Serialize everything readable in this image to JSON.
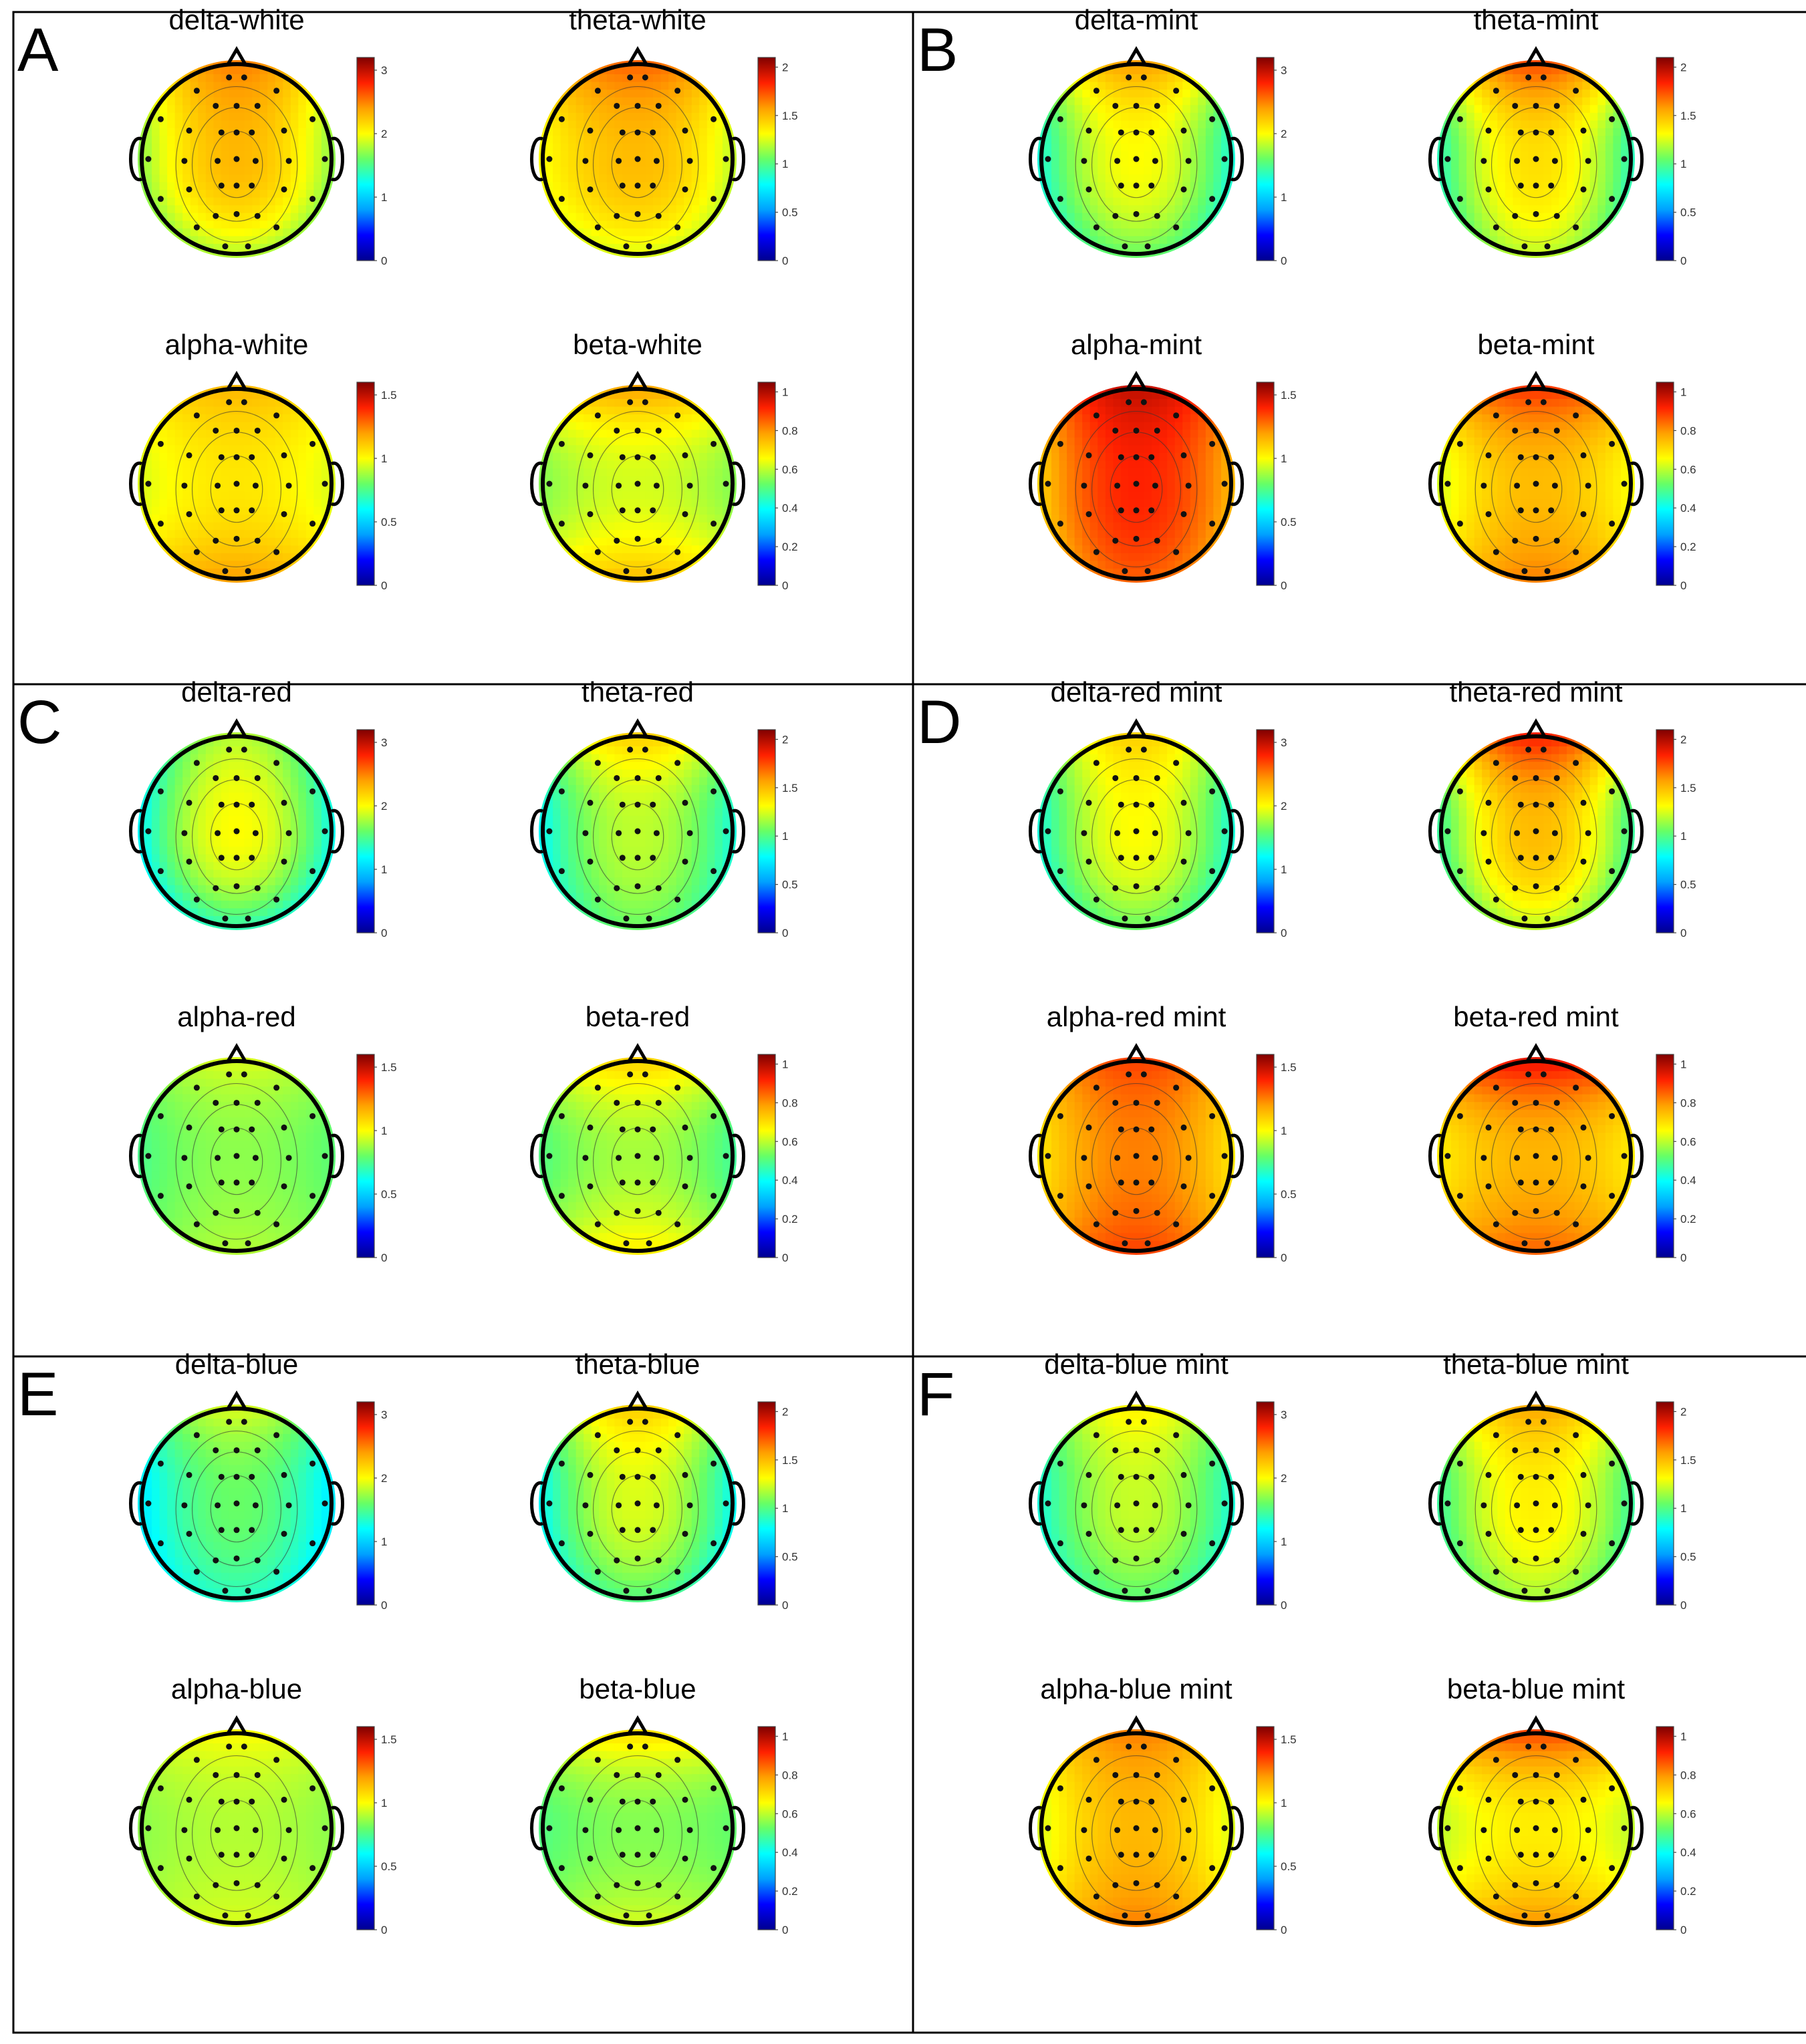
{
  "colors": {
    "frame": "#000000",
    "electrode": "#111111",
    "colormap": [
      "#00008f",
      "#0000ff",
      "#00a0ff",
      "#00ffff",
      "#66ff66",
      "#ffff00",
      "#ffa000",
      "#ff2000",
      "#800000"
    ]
  },
  "chart_data": {
    "type": "heatmap",
    "description_units": "colorbar scale (topographic EEG maps)",
    "groups": [
      {
        "letter": "A",
        "maps": [
          {
            "title": "delta-white",
            "ticks": [
              "0",
              "1",
              "2",
              "3"
            ],
            "range": [
              0,
              3.2
            ],
            "front": 2.5,
            "left": 1.7,
            "right": 1.7,
            "back": 1.8,
            "center": 2.3
          },
          {
            "title": "theta-white",
            "ticks": [
              "0",
              "0.5",
              "1",
              "1.5",
              "2"
            ],
            "range": [
              0,
              2.1
            ],
            "front": 1.7,
            "left": 1.3,
            "right": 1.2,
            "back": 1.25,
            "center": 1.5
          },
          {
            "title": "alpha-white",
            "ticks": [
              "0",
              "0.5",
              "1",
              "1.5"
            ],
            "range": [
              0,
              1.6
            ],
            "front": 1.15,
            "left": 0.95,
            "right": 0.95,
            "back": 1.2,
            "center": 1.05
          },
          {
            "title": "beta-white",
            "ticks": [
              "0",
              "0.2",
              "0.4",
              "0.6",
              "0.8",
              "1"
            ],
            "range": [
              0,
              1.05
            ],
            "front": 0.78,
            "left": 0.55,
            "right": 0.55,
            "back": 0.75,
            "center": 0.62
          }
        ]
      },
      {
        "letter": "B",
        "maps": [
          {
            "title": "delta-mint",
            "ticks": [
              "0",
              "1",
              "2",
              "3"
            ],
            "range": [
              0,
              3.2
            ],
            "front": 2.4,
            "left": 1.3,
            "right": 1.3,
            "back": 1.6,
            "center": 2.0
          },
          {
            "title": "theta-mint",
            "ticks": [
              "0",
              "0.5",
              "1",
              "1.5",
              "2"
            ],
            "range": [
              0,
              2.1
            ],
            "front": 1.75,
            "left": 0.9,
            "right": 0.9,
            "back": 1.2,
            "center": 1.4
          },
          {
            "title": "alpha-mint",
            "ticks": [
              "0",
              "0.5",
              "1",
              "1.5"
            ],
            "range": [
              0,
              1.6
            ],
            "front": 1.5,
            "left": 1.1,
            "right": 1.15,
            "back": 1.3,
            "center": 1.4
          },
          {
            "title": "beta-mint",
            "ticks": [
              "0",
              "0.2",
              "0.4",
              "0.6",
              "0.8",
              "1"
            ],
            "range": [
              0,
              1.05
            ],
            "front": 0.9,
            "left": 0.62,
            "right": 0.65,
            "back": 0.82,
            "center": 0.75
          }
        ]
      },
      {
        "letter": "C",
        "maps": [
          {
            "title": "delta-red",
            "ticks": [
              "0",
              "1",
              "2",
              "3"
            ],
            "range": [
              0,
              3.2
            ],
            "front": 1.8,
            "left": 1.2,
            "right": 1.25,
            "back": 1.4,
            "center": 2.0
          },
          {
            "title": "theta-red",
            "ticks": [
              "0",
              "0.5",
              "1",
              "1.5",
              "2"
            ],
            "range": [
              0,
              2.1
            ],
            "front": 1.45,
            "left": 0.8,
            "right": 0.85,
            "back": 1.05,
            "center": 1.2
          },
          {
            "title": "alpha-red",
            "ticks": [
              "0",
              "0.5",
              "1",
              "1.5"
            ],
            "range": [
              0,
              1.6
            ],
            "front": 0.95,
            "left": 0.75,
            "right": 0.78,
            "back": 0.9,
            "center": 0.85
          },
          {
            "title": "beta-red",
            "ticks": [
              "0",
              "0.2",
              "0.4",
              "0.6",
              "0.8",
              "1"
            ],
            "range": [
              0,
              1.05
            ],
            "front": 0.72,
            "left": 0.5,
            "right": 0.48,
            "back": 0.68,
            "center": 0.58
          }
        ]
      },
      {
        "letter": "D",
        "maps": [
          {
            "title": "delta-red mint",
            "ticks": [
              "0",
              "1",
              "2",
              "3"
            ],
            "range": [
              0,
              3.2
            ],
            "front": 2.2,
            "left": 1.3,
            "right": 1.3,
            "back": 1.6,
            "center": 2.0
          },
          {
            "title": "theta-red mint",
            "ticks": [
              "0",
              "0.5",
              "1",
              "1.5",
              "2"
            ],
            "range": [
              0,
              2.1
            ],
            "front": 1.85,
            "left": 0.95,
            "right": 0.95,
            "back": 1.2,
            "center": 1.5
          },
          {
            "title": "alpha-red mint",
            "ticks": [
              "0",
              "0.5",
              "1",
              "1.5"
            ],
            "range": [
              0,
              1.6
            ],
            "front": 1.35,
            "left": 1.05,
            "right": 1.05,
            "back": 1.35,
            "center": 1.25
          },
          {
            "title": "beta-red mint",
            "ticks": [
              "0",
              "0.2",
              "0.4",
              "0.6",
              "0.8",
              "1"
            ],
            "range": [
              0,
              1.05
            ],
            "front": 0.95,
            "left": 0.68,
            "right": 0.68,
            "back": 0.85,
            "center": 0.76
          }
        ]
      },
      {
        "letter": "E",
        "maps": [
          {
            "title": "delta-blue",
            "ticks": [
              "0",
              "1",
              "2",
              "3"
            ],
            "range": [
              0,
              3.2
            ],
            "front": 1.9,
            "left": 1.1,
            "right": 1.1,
            "back": 1.35,
            "center": 1.6
          },
          {
            "title": "theta-blue",
            "ticks": [
              "0",
              "0.5",
              "1",
              "1.5",
              "2"
            ],
            "range": [
              0,
              2.1
            ],
            "front": 1.45,
            "left": 0.8,
            "right": 0.8,
            "back": 1.0,
            "center": 1.25
          },
          {
            "title": "alpha-blue",
            "ticks": [
              "0",
              "0.5",
              "1",
              "1.5"
            ],
            "range": [
              0,
              1.6
            ],
            "front": 1.0,
            "left": 0.85,
            "right": 0.85,
            "back": 0.95,
            "center": 0.9
          },
          {
            "title": "beta-blue",
            "ticks": [
              "0",
              "0.2",
              "0.4",
              "0.6",
              "0.8",
              "1"
            ],
            "range": [
              0,
              1.05
            ],
            "front": 0.7,
            "left": 0.5,
            "right": 0.52,
            "back": 0.62,
            "center": 0.55
          }
        ]
      },
      {
        "letter": "F",
        "maps": [
          {
            "title": "delta-blue mint",
            "ticks": [
              "0",
              "1",
              "2",
              "3"
            ],
            "range": [
              0,
              3.2
            ],
            "front": 2.05,
            "left": 1.3,
            "right": 1.3,
            "back": 1.55,
            "center": 1.85
          },
          {
            "title": "theta-blue mint",
            "ticks": [
              "0",
              "0.5",
              "1",
              "1.5",
              "2"
            ],
            "range": [
              0,
              2.1
            ],
            "front": 1.55,
            "left": 0.95,
            "right": 0.95,
            "back": 1.15,
            "center": 1.35
          },
          {
            "title": "alpha-blue mint",
            "ticks": [
              "0",
              "0.5",
              "1",
              "1.5"
            ],
            "range": [
              0,
              1.6
            ],
            "front": 1.25,
            "left": 0.95,
            "right": 0.95,
            "back": 1.25,
            "center": 1.15
          },
          {
            "title": "beta-blue mint",
            "ticks": [
              "0",
              "0.2",
              "0.4",
              "0.6",
              "0.8",
              "1"
            ],
            "range": [
              0,
              1.05
            ],
            "front": 0.88,
            "left": 0.6,
            "right": 0.6,
            "back": 0.8,
            "center": 0.68
          }
        ]
      }
    ]
  }
}
